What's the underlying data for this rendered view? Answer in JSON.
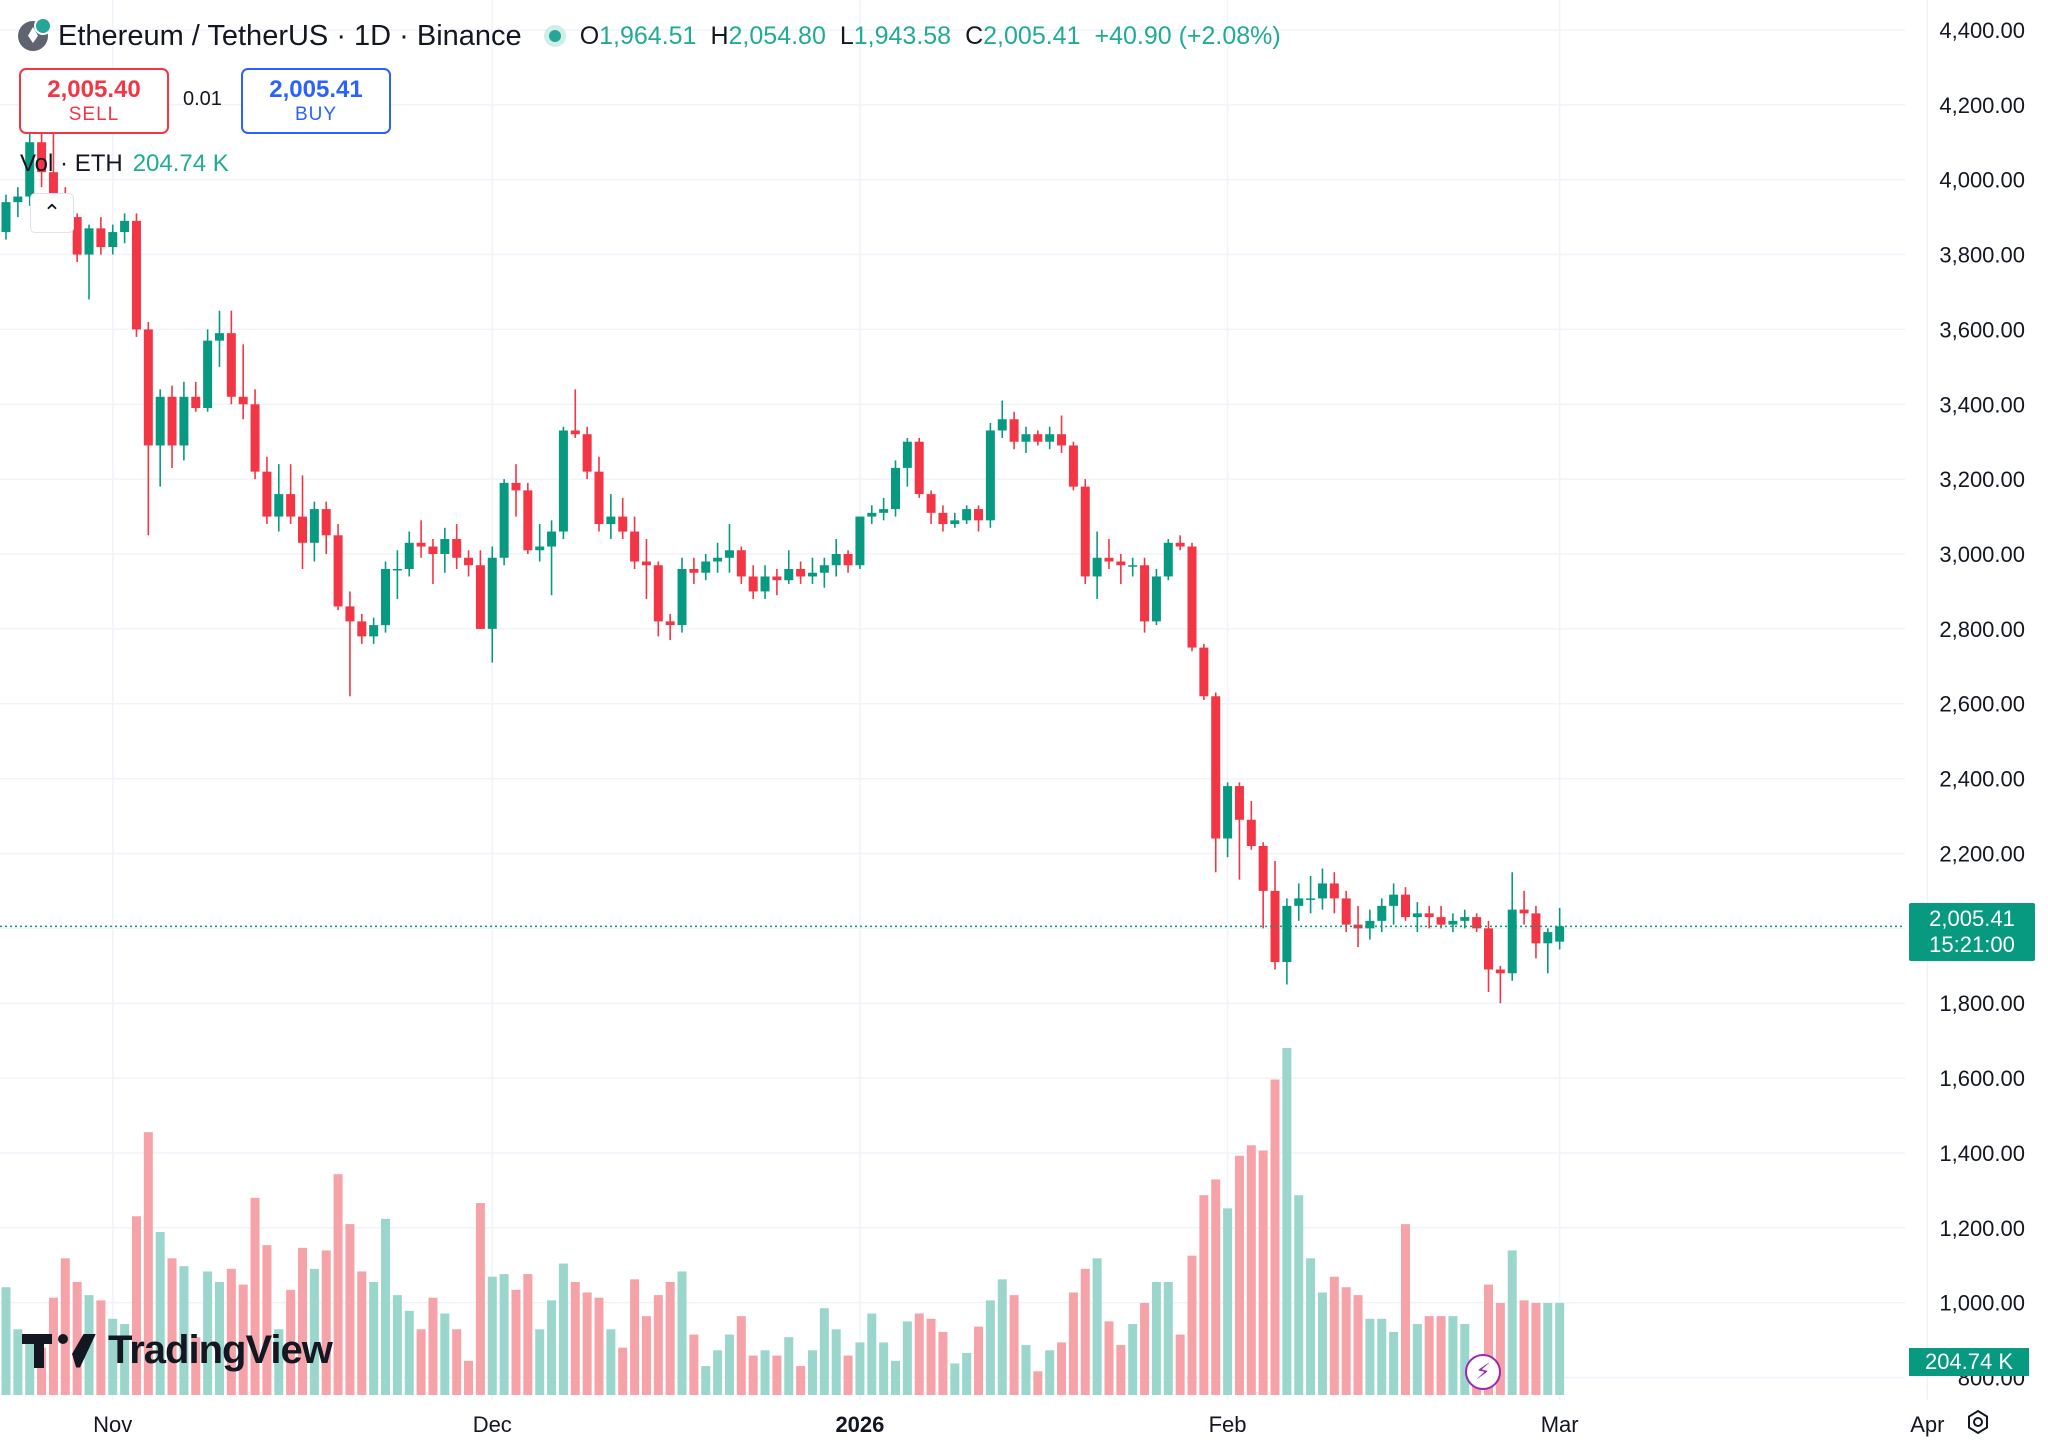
{
  "header": {
    "symbol": "Ethereum / TetherUS · 1D · Binance",
    "ohlc": [
      {
        "key": "O",
        "value": "1,964.51"
      },
      {
        "key": "H",
        "value": "2,054.80"
      },
      {
        "key": "L",
        "value": "1,943.58"
      },
      {
        "key": "C",
        "value": "2,005.41"
      }
    ],
    "change": "+40.90 (+2.08%)"
  },
  "trade": {
    "sell_price": "2,005.40",
    "sell_label": "SELL",
    "spread": "0.01",
    "buy_price": "2,005.41",
    "buy_label": "BUY"
  },
  "volume_legend": {
    "label": "Vol · ETH",
    "value": "204.74 K"
  },
  "price_tag": {
    "price": "2,005.41",
    "countdown": "15:21:00"
  },
  "volume_tag": "204.74 K",
  "brand": "TradingView",
  "colors": {
    "up": "#089981",
    "down": "#f23645",
    "up_volume": "#9ad6cc",
    "down_volume": "#f5a3a8",
    "grid": "#f0f3fa"
  },
  "icons": [
    "ethereum-coin-icon",
    "live-status-icon",
    "collapse-chevron-icon",
    "tradingview-logo-icon",
    "bolt-icon",
    "settings-icon"
  ],
  "chart_data": {
    "type": "candlestick",
    "symbol": "ETHUSDT",
    "interval": "1D",
    "yaxis": {
      "ticks": [
        "4,400.00",
        "4,200.00",
        "4,000.00",
        "3,800.00",
        "3,600.00",
        "3,400.00",
        "3,200.00",
        "3,000.00",
        "2,800.00",
        "2,600.00",
        "2,400.00",
        "2,200.00",
        "2,000.00",
        "1,800.00",
        "1,600.00",
        "1,400.00",
        "1,200.00",
        "1,000.00",
        "800.00"
      ],
      "range": [
        740,
        4480
      ]
    },
    "xaxis": {
      "ticks": [
        {
          "label": "Nov",
          "index": 9,
          "bold": false
        },
        {
          "label": "Dec",
          "index": 41,
          "bold": false
        },
        {
          "label": "2026",
          "index": 72,
          "bold": true
        },
        {
          "label": "Feb",
          "index": 103,
          "bold": false
        },
        {
          "label": "Mar",
          "index": 131,
          "bold": false
        },
        {
          "label": "Apr",
          "index": 162,
          "bold": false
        }
      ],
      "slots": 167
    },
    "last_price": 2005.41,
    "candles": [
      {
        "o": 3860,
        "h": 3960,
        "l": 3840,
        "c": 3940,
        "v": 0.41
      },
      {
        "o": 3940,
        "h": 3980,
        "l": 3900,
        "c": 3955,
        "v": 0.25
      },
      {
        "o": 3955,
        "h": 4150,
        "l": 3930,
        "c": 4100,
        "v": 0.22
      },
      {
        "o": 4100,
        "h": 4200,
        "l": 3980,
        "c": 4020,
        "v": 0.18
      },
      {
        "o": 4020,
        "h": 4250,
        "l": 3890,
        "c": 3930,
        "v": 0.37
      },
      {
        "o": 3930,
        "h": 3980,
        "l": 3860,
        "c": 3900,
        "v": 0.52
      },
      {
        "o": 3900,
        "h": 3910,
        "l": 3780,
        "c": 3800,
        "v": 0.43
      },
      {
        "o": 3800,
        "h": 3880,
        "l": 3680,
        "c": 3870,
        "v": 0.38
      },
      {
        "o": 3870,
        "h": 3900,
        "l": 3800,
        "c": 3820,
        "v": 0.36
      },
      {
        "o": 3820,
        "h": 3880,
        "l": 3800,
        "c": 3860,
        "v": 0.29
      },
      {
        "o": 3860,
        "h": 3910,
        "l": 3830,
        "c": 3890,
        "v": 0.27
      },
      {
        "o": 3890,
        "h": 3910,
        "l": 3580,
        "c": 3600,
        "v": 0.68
      },
      {
        "o": 3600,
        "h": 3620,
        "l": 3050,
        "c": 3290,
        "v": 1.0
      },
      {
        "o": 3290,
        "h": 3440,
        "l": 3180,
        "c": 3420,
        "v": 0.62
      },
      {
        "o": 3420,
        "h": 3450,
        "l": 3230,
        "c": 3290,
        "v": 0.52
      },
      {
        "o": 3290,
        "h": 3460,
        "l": 3250,
        "c": 3420,
        "v": 0.49
      },
      {
        "o": 3420,
        "h": 3460,
        "l": 3380,
        "c": 3390,
        "v": 0.22
      },
      {
        "o": 3390,
        "h": 3600,
        "l": 3380,
        "c": 3570,
        "v": 0.47
      },
      {
        "o": 3570,
        "h": 3650,
        "l": 3500,
        "c": 3590,
        "v": 0.43
      },
      {
        "o": 3590,
        "h": 3650,
        "l": 3400,
        "c": 3420,
        "v": 0.48
      },
      {
        "o": 3420,
        "h": 3560,
        "l": 3360,
        "c": 3400,
        "v": 0.42
      },
      {
        "o": 3400,
        "h": 3440,
        "l": 3200,
        "c": 3220,
        "v": 0.75
      },
      {
        "o": 3220,
        "h": 3260,
        "l": 3080,
        "c": 3100,
        "v": 0.57
      },
      {
        "o": 3100,
        "h": 3240,
        "l": 3060,
        "c": 3160,
        "v": 0.25
      },
      {
        "o": 3160,
        "h": 3240,
        "l": 3080,
        "c": 3100,
        "v": 0.4
      },
      {
        "o": 3100,
        "h": 3210,
        "l": 2960,
        "c": 3030,
        "v": 0.56
      },
      {
        "o": 3030,
        "h": 3140,
        "l": 2980,
        "c": 3120,
        "v": 0.48
      },
      {
        "o": 3120,
        "h": 3140,
        "l": 3000,
        "c": 3050,
        "v": 0.55
      },
      {
        "o": 3050,
        "h": 3080,
        "l": 2850,
        "c": 2860,
        "v": 0.84
      },
      {
        "o": 2860,
        "h": 2900,
        "l": 2620,
        "c": 2820,
        "v": 0.65
      },
      {
        "o": 2820,
        "h": 2840,
        "l": 2760,
        "c": 2780,
        "v": 0.47
      },
      {
        "o": 2780,
        "h": 2830,
        "l": 2760,
        "c": 2810,
        "v": 0.43
      },
      {
        "o": 2810,
        "h": 2980,
        "l": 2790,
        "c": 2960,
        "v": 0.67
      },
      {
        "o": 2960,
        "h": 3010,
        "l": 2880,
        "c": 2960,
        "v": 0.38
      },
      {
        "o": 2960,
        "h": 3060,
        "l": 2940,
        "c": 3030,
        "v": 0.32
      },
      {
        "o": 3030,
        "h": 3090,
        "l": 2990,
        "c": 3020,
        "v": 0.25
      },
      {
        "o": 3020,
        "h": 3040,
        "l": 2920,
        "c": 3000,
        "v": 0.37
      },
      {
        "o": 3000,
        "h": 3070,
        "l": 2950,
        "c": 3040,
        "v": 0.31
      },
      {
        "o": 3040,
        "h": 3080,
        "l": 2960,
        "c": 2990,
        "v": 0.25
      },
      {
        "o": 2990,
        "h": 3010,
        "l": 2940,
        "c": 2970,
        "v": 0.13
      },
      {
        "o": 2970,
        "h": 3010,
        "l": 2800,
        "c": 2800,
        "v": 0.73
      },
      {
        "o": 2800,
        "h": 3020,
        "l": 2710,
        "c": 2990,
        "v": 0.45
      },
      {
        "o": 2990,
        "h": 3200,
        "l": 2970,
        "c": 3190,
        "v": 0.46
      },
      {
        "o": 3190,
        "h": 3240,
        "l": 3100,
        "c": 3170,
        "v": 0.4
      },
      {
        "o": 3170,
        "h": 3190,
        "l": 3000,
        "c": 3010,
        "v": 0.46
      },
      {
        "o": 3010,
        "h": 3080,
        "l": 2980,
        "c": 3020,
        "v": 0.25
      },
      {
        "o": 3020,
        "h": 3090,
        "l": 2890,
        "c": 3060,
        "v": 0.36
      },
      {
        "o": 3060,
        "h": 3340,
        "l": 3040,
        "c": 3330,
        "v": 0.5
      },
      {
        "o": 3330,
        "h": 3440,
        "l": 3310,
        "c": 3320,
        "v": 0.43
      },
      {
        "o": 3320,
        "h": 3340,
        "l": 3200,
        "c": 3220,
        "v": 0.39
      },
      {
        "o": 3220,
        "h": 3260,
        "l": 3060,
        "c": 3080,
        "v": 0.37
      },
      {
        "o": 3080,
        "h": 3160,
        "l": 3040,
        "c": 3100,
        "v": 0.25
      },
      {
        "o": 3100,
        "h": 3150,
        "l": 3040,
        "c": 3060,
        "v": 0.18
      },
      {
        "o": 3060,
        "h": 3100,
        "l": 2960,
        "c": 2980,
        "v": 0.44
      },
      {
        "o": 2980,
        "h": 3040,
        "l": 2880,
        "c": 2970,
        "v": 0.3
      },
      {
        "o": 2970,
        "h": 2980,
        "l": 2780,
        "c": 2820,
        "v": 0.38
      },
      {
        "o": 2820,
        "h": 2840,
        "l": 2770,
        "c": 2810,
        "v": 0.43
      },
      {
        "o": 2810,
        "h": 2990,
        "l": 2790,
        "c": 2960,
        "v": 0.47
      },
      {
        "o": 2960,
        "h": 2990,
        "l": 2920,
        "c": 2950,
        "v": 0.23
      },
      {
        "o": 2950,
        "h": 3000,
        "l": 2930,
        "c": 2980,
        "v": 0.11
      },
      {
        "o": 2980,
        "h": 3030,
        "l": 2950,
        "c": 2990,
        "v": 0.17
      },
      {
        "o": 2990,
        "h": 3080,
        "l": 2950,
        "c": 3010,
        "v": 0.23
      },
      {
        "o": 3010,
        "h": 3020,
        "l": 2920,
        "c": 2940,
        "v": 0.3
      },
      {
        "o": 2940,
        "h": 2970,
        "l": 2880,
        "c": 2900,
        "v": 0.15
      },
      {
        "o": 2900,
        "h": 2970,
        "l": 2880,
        "c": 2940,
        "v": 0.17
      },
      {
        "o": 2940,
        "h": 2960,
        "l": 2890,
        "c": 2930,
        "v": 0.15
      },
      {
        "o": 2930,
        "h": 3010,
        "l": 2920,
        "c": 2960,
        "v": 0.22
      },
      {
        "o": 2960,
        "h": 2980,
        "l": 2920,
        "c": 2940,
        "v": 0.11
      },
      {
        "o": 2940,
        "h": 2990,
        "l": 2920,
        "c": 2950,
        "v": 0.17
      },
      {
        "o": 2950,
        "h": 2990,
        "l": 2910,
        "c": 2970,
        "v": 0.33
      },
      {
        "o": 2970,
        "h": 3040,
        "l": 2940,
        "c": 3000,
        "v": 0.25
      },
      {
        "o": 3000,
        "h": 3010,
        "l": 2950,
        "c": 2970,
        "v": 0.15
      },
      {
        "o": 2970,
        "h": 3100,
        "l": 2960,
        "c": 3100,
        "v": 0.2
      },
      {
        "o": 3100,
        "h": 3130,
        "l": 3080,
        "c": 3110,
        "v": 0.31
      },
      {
        "o": 3110,
        "h": 3150,
        "l": 3090,
        "c": 3120,
        "v": 0.2
      },
      {
        "o": 3120,
        "h": 3250,
        "l": 3100,
        "c": 3230,
        "v": 0.13
      },
      {
        "o": 3230,
        "h": 3310,
        "l": 3180,
        "c": 3300,
        "v": 0.28
      },
      {
        "o": 3300,
        "h": 3310,
        "l": 3150,
        "c": 3160,
        "v": 0.31
      },
      {
        "o": 3160,
        "h": 3170,
        "l": 3080,
        "c": 3110,
        "v": 0.29
      },
      {
        "o": 3110,
        "h": 3130,
        "l": 3060,
        "c": 3080,
        "v": 0.24
      },
      {
        "o": 3080,
        "h": 3110,
        "l": 3070,
        "c": 3090,
        "v": 0.12
      },
      {
        "o": 3090,
        "h": 3130,
        "l": 3080,
        "c": 3120,
        "v": 0.16
      },
      {
        "o": 3120,
        "h": 3130,
        "l": 3060,
        "c": 3090,
        "v": 0.26
      },
      {
        "o": 3090,
        "h": 3350,
        "l": 3070,
        "c": 3330,
        "v": 0.36
      },
      {
        "o": 3330,
        "h": 3410,
        "l": 3310,
        "c": 3360,
        "v": 0.44
      },
      {
        "o": 3360,
        "h": 3380,
        "l": 3280,
        "c": 3300,
        "v": 0.38
      },
      {
        "o": 3300,
        "h": 3340,
        "l": 3270,
        "c": 3320,
        "v": 0.19
      },
      {
        "o": 3320,
        "h": 3330,
        "l": 3290,
        "c": 3300,
        "v": 0.09
      },
      {
        "o": 3300,
        "h": 3340,
        "l": 3280,
        "c": 3320,
        "v": 0.17
      },
      {
        "o": 3320,
        "h": 3370,
        "l": 3270,
        "c": 3290,
        "v": 0.2
      },
      {
        "o": 3290,
        "h": 3300,
        "l": 3170,
        "c": 3180,
        "v": 0.39
      },
      {
        "o": 3180,
        "h": 3200,
        "l": 2920,
        "c": 2940,
        "v": 0.48
      },
      {
        "o": 2940,
        "h": 3060,
        "l": 2880,
        "c": 2990,
        "v": 0.52
      },
      {
        "o": 2990,
        "h": 3040,
        "l": 2960,
        "c": 2980,
        "v": 0.28
      },
      {
        "o": 2980,
        "h": 3000,
        "l": 2920,
        "c": 2970,
        "v": 0.19
      },
      {
        "o": 2970,
        "h": 2990,
        "l": 2940,
        "c": 2970,
        "v": 0.27
      },
      {
        "o": 2970,
        "h": 2990,
        "l": 2790,
        "c": 2820,
        "v": 0.35
      },
      {
        "o": 2820,
        "h": 2960,
        "l": 2810,
        "c": 2940,
        "v": 0.43
      },
      {
        "o": 2940,
        "h": 3040,
        "l": 2930,
        "c": 3030,
        "v": 0.43
      },
      {
        "o": 3030,
        "h": 3050,
        "l": 3010,
        "c": 3020,
        "v": 0.23
      },
      {
        "o": 3020,
        "h": 3030,
        "l": 2740,
        "c": 2750,
        "v": 0.53
      },
      {
        "o": 2750,
        "h": 2760,
        "l": 2610,
        "c": 2620,
        "v": 0.76
      },
      {
        "o": 2620,
        "h": 2630,
        "l": 2150,
        "c": 2240,
        "v": 0.82
      },
      {
        "o": 2240,
        "h": 2390,
        "l": 2190,
        "c": 2380,
        "v": 0.71
      },
      {
        "o": 2380,
        "h": 2390,
        "l": 2130,
        "c": 2290,
        "v": 0.91
      },
      {
        "o": 2290,
        "h": 2340,
        "l": 2210,
        "c": 2220,
        "v": 0.95
      },
      {
        "o": 2220,
        "h": 2230,
        "l": 2000,
        "c": 2100,
        "v": 0.93
      },
      {
        "o": 2100,
        "h": 2180,
        "l": 1890,
        "c": 1910,
        "v": 1.2
      },
      {
        "o": 1910,
        "h": 2080,
        "l": 1850,
        "c": 2060,
        "v": 1.32
      },
      {
        "o": 2060,
        "h": 2120,
        "l": 2020,
        "c": 2080,
        "v": 0.76
      },
      {
        "o": 2080,
        "h": 2140,
        "l": 2040,
        "c": 2080,
        "v": 0.52
      },
      {
        "o": 2080,
        "h": 2160,
        "l": 2050,
        "c": 2120,
        "v": 0.39
      },
      {
        "o": 2120,
        "h": 2150,
        "l": 2040,
        "c": 2080,
        "v": 0.45
      },
      {
        "o": 2080,
        "h": 2100,
        "l": 1990,
        "c": 2010,
        "v": 0.41
      },
      {
        "o": 2010,
        "h": 2060,
        "l": 1950,
        "c": 2000,
        "v": 0.38
      },
      {
        "o": 2000,
        "h": 2050,
        "l": 1970,
        "c": 2020,
        "v": 0.29
      },
      {
        "o": 2020,
        "h": 2080,
        "l": 1990,
        "c": 2060,
        "v": 0.29
      },
      {
        "o": 2060,
        "h": 2120,
        "l": 2010,
        "c": 2090,
        "v": 0.24
      },
      {
        "o": 2090,
        "h": 2110,
        "l": 2020,
        "c": 2030,
        "v": 0.65
      },
      {
        "o": 2030,
        "h": 2070,
        "l": 1990,
        "c": 2040,
        "v": 0.27
      },
      {
        "o": 2040,
        "h": 2060,
        "l": 2000,
        "c": 2030,
        "v": 0.3
      },
      {
        "o": 2030,
        "h": 2060,
        "l": 2000,
        "c": 2010,
        "v": 0.3
      },
      {
        "o": 2010,
        "h": 2040,
        "l": 1990,
        "c": 2020,
        "v": 0.3
      },
      {
        "o": 2020,
        "h": 2050,
        "l": 2000,
        "c": 2030,
        "v": 0.27
      },
      {
        "o": 2030,
        "h": 2040,
        "l": 1990,
        "c": 2000,
        "v": 0.13
      },
      {
        "o": 2000,
        "h": 2020,
        "l": 1830,
        "c": 1890,
        "v": 0.42
      },
      {
        "o": 1890,
        "h": 1900,
        "l": 1800,
        "c": 1880,
        "v": 0.35
      },
      {
        "o": 1880,
        "h": 2150,
        "l": 1860,
        "c": 2050,
        "v": 0.55
      },
      {
        "o": 2050,
        "h": 2100,
        "l": 2010,
        "c": 2040,
        "v": 0.36
      },
      {
        "o": 2040,
        "h": 2060,
        "l": 1920,
        "c": 1960,
        "v": 0.35
      },
      {
        "o": 1960,
        "h": 2000,
        "l": 1880,
        "c": 1990,
        "v": 0.35
      },
      {
        "o": 1964.51,
        "h": 2054.8,
        "l": 1943.58,
        "c": 2005.41,
        "v": 0.35
      }
    ]
  }
}
